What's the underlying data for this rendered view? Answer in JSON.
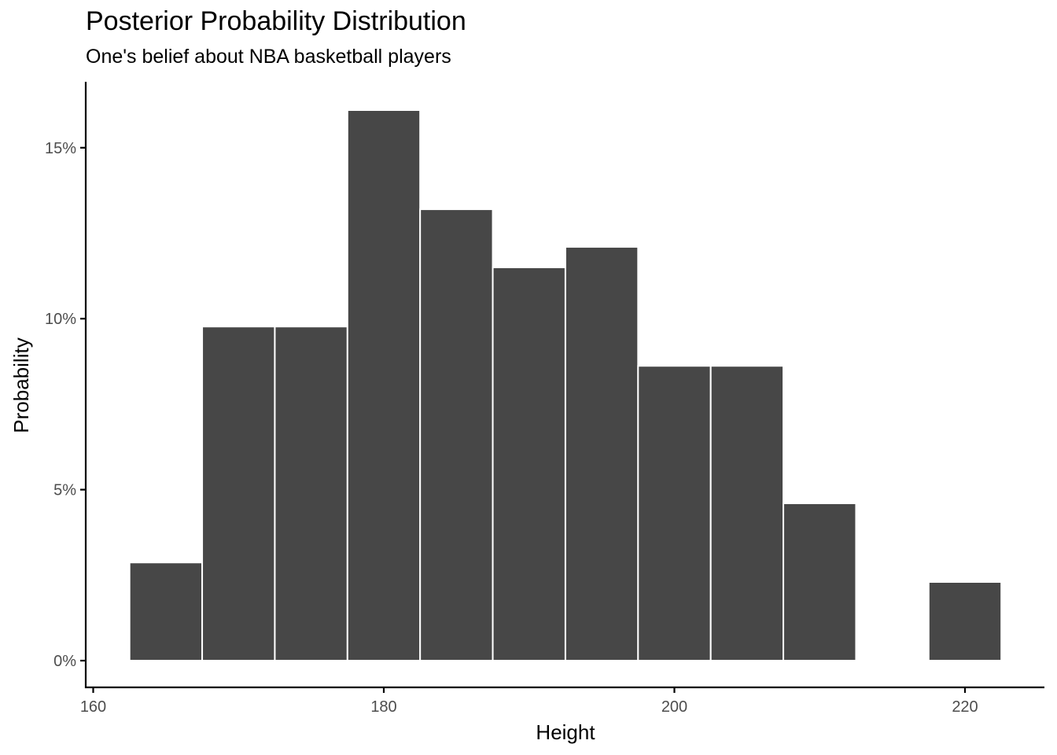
{
  "chart_data": {
    "type": "bar",
    "title": "Posterior Probability Distribution",
    "subtitle": "One's belief about NBA basketball players",
    "xlabel": "Height",
    "ylabel": "Probability",
    "bin_width": 5,
    "bins": [
      {
        "x": 165,
        "y": 2.87
      },
      {
        "x": 170,
        "y": 9.77
      },
      {
        "x": 175,
        "y": 9.77
      },
      {
        "x": 180,
        "y": 16.1
      },
      {
        "x": 185,
        "y": 13.2
      },
      {
        "x": 190,
        "y": 11.5
      },
      {
        "x": 195,
        "y": 12.1
      },
      {
        "x": 200,
        "y": 8.62
      },
      {
        "x": 205,
        "y": 8.62
      },
      {
        "x": 210,
        "y": 4.6
      },
      {
        "x": 215,
        "y": 0
      },
      {
        "x": 220,
        "y": 2.3
      }
    ],
    "xlim": [
      160,
      225
    ],
    "ylim": [
      0,
      16.1
    ],
    "xticks": [
      {
        "value": 160,
        "label": "160"
      },
      {
        "value": 180,
        "label": "180"
      },
      {
        "value": 200,
        "label": "200"
      },
      {
        "value": 220,
        "label": "220"
      }
    ],
    "yticks": [
      {
        "value": 0,
        "label": "0%"
      },
      {
        "value": 5,
        "label": "5%"
      },
      {
        "value": 10,
        "label": "10%"
      },
      {
        "value": 15,
        "label": "15%"
      }
    ],
    "grid": false,
    "bar_color": "#474747",
    "bar_outline": "#ffffff"
  }
}
